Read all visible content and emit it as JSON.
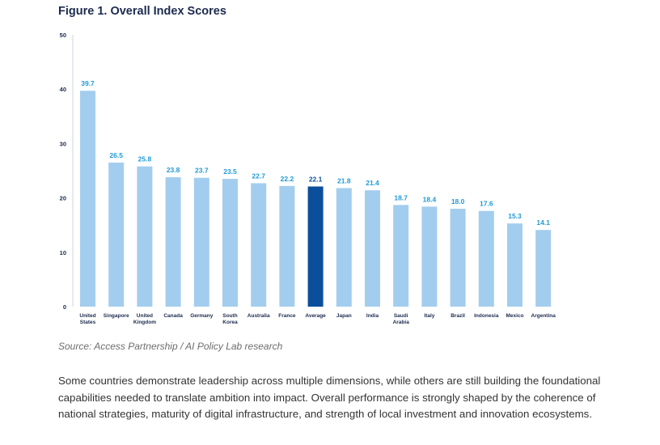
{
  "title": "Figure 1. Overall Index Scores",
  "source": "Source: Access Partnership / AI Policy Lab research",
  "paragraph": "Some countries demonstrate leadership across multiple dimensions, while others are still building the foundational capabilities needed to translate ambition into impact. Overall performance is strongly shaped by the coherence of national strategies, maturity of digital infrastructure, and strength of local investment and innovation ecosystems.",
  "colors": {
    "bar": "#a3cdee",
    "highlight_bar": "#0b4f9c",
    "value_label": "#1f9ad6",
    "highlight_label": "#0b4f9c",
    "axis_text": "#1b2a4e",
    "axis_line": "#cfd6de"
  },
  "chart_data": {
    "type": "bar",
    "title": "Figure 1. Overall Index Scores",
    "xlabel": "",
    "ylabel": "",
    "ylim": [
      0,
      50
    ],
    "yticks": [
      0,
      10,
      20,
      30,
      40,
      50
    ],
    "grid": false,
    "highlight": "Average",
    "categories": [
      [
        "United",
        "States"
      ],
      [
        "Singapore"
      ],
      [
        "United",
        "Kingdom"
      ],
      [
        "Canada"
      ],
      [
        "Germany"
      ],
      [
        "South",
        "Korea"
      ],
      [
        "Australia"
      ],
      [
        "France"
      ],
      [
        "Average"
      ],
      [
        "Japan"
      ],
      [
        "India"
      ],
      [
        "Saudi",
        "Arabia"
      ],
      [
        "Italy"
      ],
      [
        "Brazil"
      ],
      [
        "Indonesia"
      ],
      [
        "Mexico"
      ],
      [
        "Argentina"
      ]
    ],
    "values": [
      39.7,
      26.5,
      25.8,
      23.8,
      23.7,
      23.5,
      22.7,
      22.2,
      22.1,
      21.8,
      21.4,
      18.7,
      18.4,
      18.0,
      17.6,
      15.3,
      14.1
    ],
    "value_labels": [
      "39.7",
      "26.5",
      "25.8",
      "23.8",
      "23.7",
      "23.5",
      "22.7",
      "22.2",
      "22.1",
      "21.8",
      "21.4",
      "18.7",
      "18.4",
      "18.0",
      "17.6",
      "15.3",
      "14.1"
    ]
  }
}
